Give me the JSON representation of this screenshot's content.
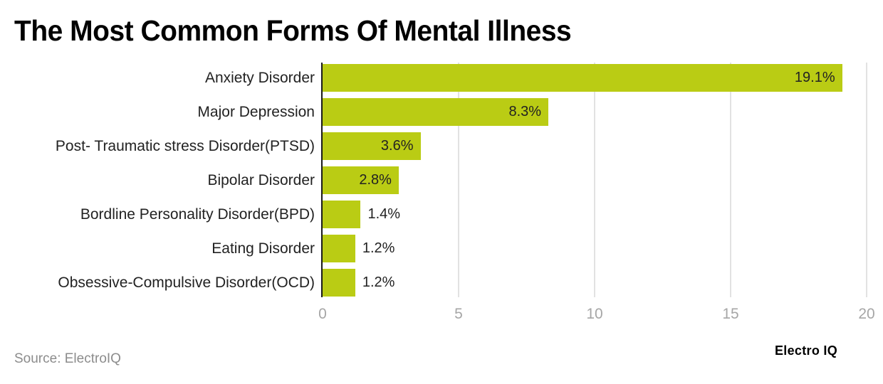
{
  "title": "The Most Common Forms Of Mental Illness",
  "source": "Source: ElectroIQ",
  "brand": "Electro IQ",
  "colors": {
    "bar": "#bacc14",
    "axis": "#1a1a1a",
    "grid": "#e2e2e2",
    "tick": "#a6a6a6"
  },
  "chart_data": {
    "type": "bar",
    "orientation": "horizontal",
    "title": "The Most Common Forms Of Mental Illness",
    "xlabel": "",
    "ylabel": "",
    "xlim": [
      0,
      20
    ],
    "xticks": [
      "0",
      "5",
      "10",
      "15",
      "20"
    ],
    "grid": true,
    "legend": null,
    "categories": [
      "Anxiety Disorder",
      "Major Depression",
      "Post- Traumatic stress Disorder(PTSD)",
      "Bipolar Disorder",
      "Bordline Personality Disorder(BPD)",
      "Eating Disorder",
      "Obsessive-Compulsive Disorder(OCD)"
    ],
    "values": [
      19.1,
      8.3,
      3.6,
      2.8,
      1.4,
      1.2,
      1.2
    ],
    "value_labels": [
      "19.1%",
      "8.3%",
      "3.6%",
      "2.8%",
      "1.4%",
      "1.2%",
      "1.2%"
    ],
    "source": "Source: ElectroIQ"
  }
}
